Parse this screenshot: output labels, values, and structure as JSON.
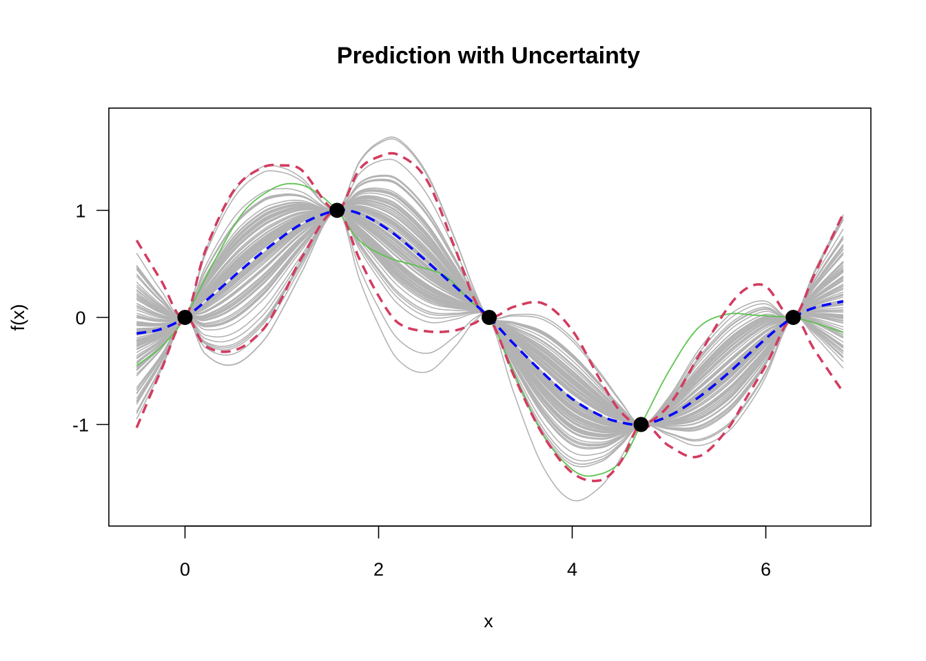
{
  "chart_data": {
    "type": "line",
    "title": "Prediction with Uncertainty",
    "xlabel": "x",
    "ylabel": "f(x)",
    "xlim": [
      -0.5,
      6.8
    ],
    "ylim": [
      -1.9,
      1.9
    ],
    "x_ticks": [
      0,
      2,
      4,
      6
    ],
    "y_ticks": [
      -1,
      0,
      1
    ],
    "grid": false,
    "legend": "none",
    "observed_points": {
      "x": [
        0,
        1.571,
        3.142,
        4.712,
        6.283
      ],
      "y": [
        0,
        1,
        0,
        -1,
        0
      ],
      "color": "#000000"
    },
    "sample_paths": {
      "count": 100,
      "color": "#b3b3b3",
      "x_range": [
        -0.5,
        6.8
      ]
    },
    "series": [
      {
        "style": "dashed",
        "color": "#0000ff",
        "x": [
          -0.5,
          -0.25,
          0,
          0.3,
          0.6,
          0.9,
          1.2,
          1.571,
          1.8,
          2.1,
          2.4,
          2.7,
          2.95,
          3.142,
          3.4,
          3.7,
          4.0,
          4.3,
          4.5,
          4.712,
          5.0,
          5.3,
          5.6,
          5.9,
          6.1,
          6.283,
          6.5,
          6.8
        ],
        "y": [
          -0.15,
          -0.11,
          0,
          0.22,
          0.46,
          0.68,
          0.87,
          1.0,
          0.97,
          0.82,
          0.6,
          0.36,
          0.16,
          0,
          -0.25,
          -0.52,
          -0.76,
          -0.92,
          -0.98,
          -1.0,
          -0.92,
          -0.75,
          -0.53,
          -0.28,
          -0.12,
          0,
          0.09,
          0.15
        ]
      },
      {
        "style": "dashed",
        "color": "#d23c5f",
        "x": [
          -0.5,
          -0.25,
          0,
          0.2,
          0.5,
          0.8,
          1.0,
          1.2,
          1.571,
          1.8,
          2.0,
          2.2,
          2.5,
          2.8,
          3.0,
          3.142,
          3.4,
          3.7,
          4.0,
          4.3,
          4.5,
          4.712,
          5.0,
          5.3,
          5.6,
          5.8,
          6.0,
          6.283,
          6.5,
          6.8
        ],
        "y": [
          0.72,
          0.35,
          0,
          0.6,
          1.18,
          1.4,
          1.42,
          1.38,
          1.0,
          1.38,
          1.5,
          1.52,
          1.28,
          0.62,
          0.15,
          0,
          0.1,
          0.13,
          -0.12,
          -0.6,
          -0.88,
          -1.0,
          -0.82,
          -0.37,
          0.08,
          0.27,
          0.29,
          0,
          0.4,
          0.97
        ]
      },
      {
        "style": "dashed",
        "color": "#d23c5f",
        "x": [
          -0.5,
          -0.25,
          0,
          0.2,
          0.5,
          0.8,
          1.0,
          1.2,
          1.571,
          1.8,
          2.0,
          2.2,
          2.5,
          2.8,
          3.0,
          3.142,
          3.4,
          3.7,
          4.0,
          4.3,
          4.5,
          4.712,
          5.0,
          5.3,
          5.6,
          5.8,
          6.0,
          6.283,
          6.5,
          6.8
        ],
        "y": [
          -1.03,
          -0.5,
          0,
          -0.26,
          -0.31,
          -0.12,
          0.18,
          0.55,
          1.0,
          0.55,
          0.2,
          -0.05,
          -0.13,
          -0.12,
          -0.05,
          0,
          -0.55,
          -1.1,
          -1.45,
          -1.52,
          -1.35,
          -1.0,
          -1.2,
          -1.3,
          -1.05,
          -0.75,
          -0.45,
          0,
          -0.3,
          -0.7
        ]
      },
      {
        "style": "solid",
        "color": "#5cc24e",
        "x": [
          -0.5,
          -0.25,
          0,
          0.3,
          0.6,
          0.9,
          1.1,
          1.3,
          1.571,
          1.8,
          2.1,
          2.4,
          2.7,
          2.95,
          3.142,
          3.4,
          3.7,
          4.0,
          4.2,
          4.5,
          4.712,
          5.0,
          5.3,
          5.6,
          5.9,
          6.1,
          6.283,
          6.5,
          6.8
        ],
        "y": [
          -0.45,
          -0.28,
          0,
          0.52,
          0.98,
          1.2,
          1.25,
          1.2,
          1.0,
          0.72,
          0.56,
          0.48,
          0.38,
          0.15,
          0,
          -0.52,
          -1.1,
          -1.42,
          -1.48,
          -1.35,
          -1.0,
          -0.5,
          -0.1,
          0.03,
          0.02,
          0.01,
          0,
          -0.05,
          -0.14
        ]
      }
    ]
  }
}
